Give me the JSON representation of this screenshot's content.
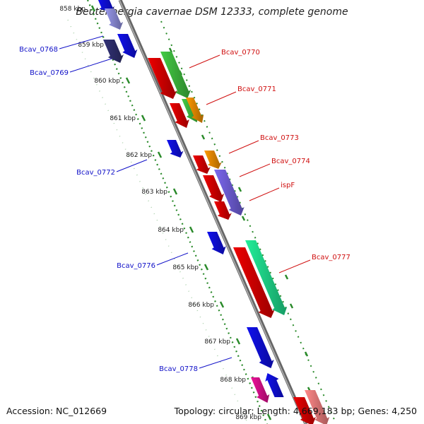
{
  "title": "Beutenbergia cavernae DSM 12333, complete genome",
  "footer": {
    "accession": "Accession: NC_012669",
    "summary": "Topology: circular; Length: 4,669,183 bp; Genes: 4,250"
  },
  "ticks": [
    "858 kbp",
    "859 kbp",
    "860 kbp",
    "861 kbp",
    "862 kbp",
    "863 kbp",
    "864 kbp",
    "865 kbp",
    "866 kbp",
    "867 kbp",
    "868 kbp",
    "869 kbp"
  ],
  "left_labels": [
    "Bcav_0768",
    "Bcav_0769",
    "Bcav_0772",
    "Bcav_0776",
    "Bcav_0778"
  ],
  "right_labels": [
    "Bcav_0770",
    "Bcav_0771",
    "Bcav_0773",
    "Bcav_0774",
    "ispF",
    "Bcav_0777"
  ],
  "colors": {
    "backbone": "#8c8c8c",
    "tick_mark": "#2a8a2a",
    "left_label": "#1010c8",
    "right_label": "#d01010",
    "gene_red": "#ee0000",
    "gene_blue": "#1010ee",
    "gene_green": "#44cc44",
    "gene_orange": "#ff9900",
    "gene_purple": "#7b68ee",
    "gene_teal": "#22ee99",
    "gene_navy": "#333377",
    "gene_magenta": "#ee1199",
    "gene_pink": "#ff8888"
  }
}
